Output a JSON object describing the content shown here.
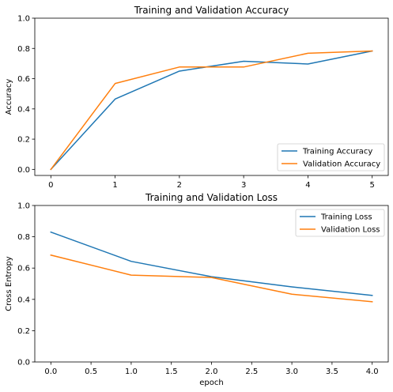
{
  "chart_data": [
    {
      "type": "line",
      "title": "Training and Validation Accuracy",
      "xlabel": "",
      "ylabel": "Accuracy",
      "xlim": [
        -0.25,
        5.25
      ],
      "ylim": [
        -0.04,
        1.0
      ],
      "xticks": [
        0,
        1,
        2,
        3,
        4,
        5
      ],
      "xtick_labels": [
        "0",
        "1",
        "2",
        "3",
        "4",
        "5"
      ],
      "yticks": [
        0.0,
        0.2,
        0.4,
        0.6,
        0.8,
        1.0
      ],
      "ytick_labels": [
        "0.0",
        "0.2",
        "0.4",
        "0.6",
        "0.8",
        "1.0"
      ],
      "legend_position": "lower-right",
      "grid": false,
      "x": [
        0,
        1,
        2,
        3,
        4,
        5
      ],
      "series": [
        {
          "name": "Training Accuracy",
          "color": "#1f77b4",
          "values": [
            0.0,
            0.465,
            0.65,
            0.715,
            0.697,
            0.783
          ]
        },
        {
          "name": "Validation Accuracy",
          "color": "#ff7f0e",
          "values": [
            0.0,
            0.568,
            0.677,
            0.677,
            0.768,
            0.783
          ]
        }
      ]
    },
    {
      "type": "line",
      "title": "Training and Validation Loss",
      "xlabel": "epoch",
      "ylabel": "Cross Entropy",
      "xlim": [
        -0.2,
        4.2
      ],
      "ylim": [
        0.0,
        1.0
      ],
      "xticks": [
        0.0,
        0.5,
        1.0,
        1.5,
        2.0,
        2.5,
        3.0,
        3.5,
        4.0
      ],
      "xtick_labels": [
        "0.0",
        "0.5",
        "1.0",
        "1.5",
        "2.0",
        "2.5",
        "3.0",
        "3.5",
        "4.0"
      ],
      "yticks": [
        0.0,
        0.2,
        0.4,
        0.6,
        0.8,
        1.0
      ],
      "ytick_labels": [
        "0.0",
        "0.2",
        "0.4",
        "0.6",
        "0.8",
        "1.0"
      ],
      "legend_position": "upper-right",
      "grid": false,
      "x": [
        0,
        1,
        2,
        3,
        4
      ],
      "series": [
        {
          "name": "Training Loss",
          "color": "#1f77b4",
          "values": [
            0.83,
            0.643,
            0.545,
            0.48,
            0.425
          ]
        },
        {
          "name": "Validation Loss",
          "color": "#ff7f0e",
          "values": [
            0.683,
            0.555,
            0.54,
            0.433,
            0.385
          ]
        }
      ]
    }
  ]
}
